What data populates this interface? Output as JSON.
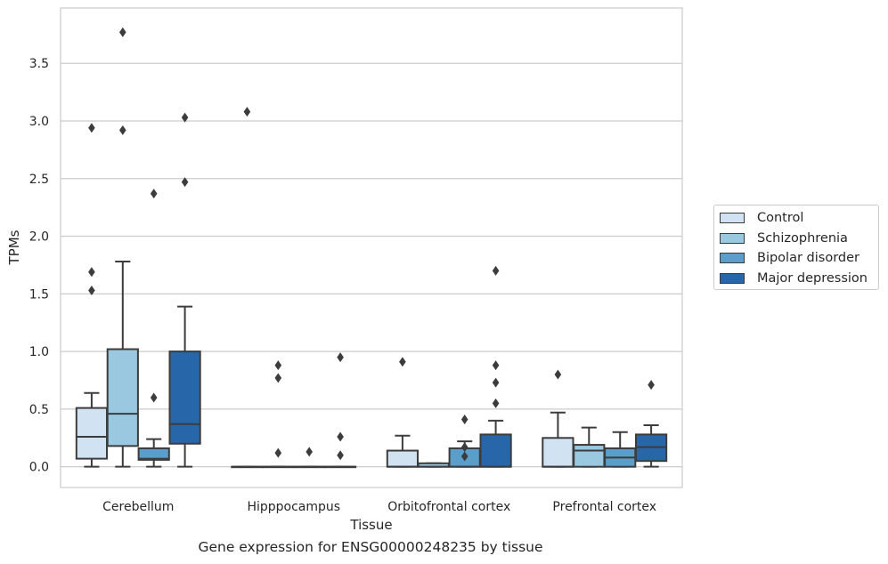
{
  "caption": "Gene expression for ENSG00000248235 by tissue",
  "chart_data": {
    "type": "box",
    "xlabel": "Tissue",
    "ylabel": "TPMs",
    "ylim": [
      -0.18,
      3.98
    ],
    "yticks": [
      "0.0",
      "0.5",
      "1.0",
      "1.5",
      "2.0",
      "2.5",
      "3.0",
      "3.5"
    ],
    "categories": [
      "Cerebellum",
      "Hipppocampus",
      "Orbitofrontal cortex",
      "Prefrontal cortex"
    ],
    "grid": "horizontal",
    "legend_position": "right",
    "series": [
      {
        "name": "Control",
        "color": "#d1e2f2",
        "boxes": [
          {
            "q1": 0.07,
            "median": 0.26,
            "q3": 0.51,
            "whisker_low": 0.0,
            "whisker_high": 0.64,
            "outliers": [
              1.53,
              1.69,
              2.94
            ]
          },
          {
            "q1": 0.0,
            "median": 0.0,
            "q3": 0.0,
            "whisker_low": 0.0,
            "whisker_high": 0.0,
            "outliers": [
              3.08
            ]
          },
          {
            "q1": 0.0,
            "median": 0.0,
            "q3": 0.14,
            "whisker_low": 0.0,
            "whisker_high": 0.27,
            "outliers": [
              0.91
            ]
          },
          {
            "q1": 0.0,
            "median": 0.0,
            "q3": 0.25,
            "whisker_low": 0.0,
            "whisker_high": 0.47,
            "outliers": [
              0.8
            ]
          }
        ]
      },
      {
        "name": "Schizophrenia",
        "color": "#9ac8e0",
        "boxes": [
          {
            "q1": 0.18,
            "median": 0.46,
            "q3": 1.02,
            "whisker_low": 0.0,
            "whisker_high": 1.78,
            "outliers": [
              2.92,
              3.77
            ]
          },
          {
            "q1": 0.0,
            "median": 0.0,
            "q3": 0.0,
            "whisker_low": 0.0,
            "whisker_high": 0.0,
            "outliers": [
              0.12,
              0.77,
              0.88
            ]
          },
          {
            "q1": 0.0,
            "median": 0.0,
            "q3": 0.03,
            "whisker_low": 0.0,
            "whisker_high": 0.03,
            "outliers": []
          },
          {
            "q1": 0.0,
            "median": 0.14,
            "q3": 0.19,
            "whisker_low": 0.0,
            "whisker_high": 0.34,
            "outliers": []
          }
        ]
      },
      {
        "name": "Bipolar disorder",
        "color": "#5a9ec9",
        "boxes": [
          {
            "q1": 0.06,
            "median": 0.07,
            "q3": 0.16,
            "whisker_low": 0.0,
            "whisker_high": 0.24,
            "outliers": [
              0.6,
              2.37
            ]
          },
          {
            "q1": 0.0,
            "median": 0.0,
            "q3": 0.0,
            "whisker_low": 0.0,
            "whisker_high": 0.0,
            "outliers": [
              0.13
            ]
          },
          {
            "q1": 0.0,
            "median": 0.0,
            "q3": 0.16,
            "whisker_low": 0.0,
            "whisker_high": 0.22,
            "outliers": [
              0.09,
              0.17,
              0.41
            ]
          },
          {
            "q1": 0.0,
            "median": 0.08,
            "q3": 0.16,
            "whisker_low": 0.0,
            "whisker_high": 0.3,
            "outliers": []
          }
        ]
      },
      {
        "name": "Major depression",
        "color": "#2766a8",
        "boxes": [
          {
            "q1": 0.2,
            "median": 0.37,
            "q3": 1.0,
            "whisker_low": 0.0,
            "whisker_high": 1.39,
            "outliers": [
              2.47,
              3.03
            ]
          },
          {
            "q1": 0.0,
            "median": 0.0,
            "q3": 0.0,
            "whisker_low": 0.0,
            "whisker_high": 0.0,
            "outliers": [
              0.1,
              0.26,
              0.95
            ]
          },
          {
            "q1": 0.0,
            "median": 0.0,
            "q3": 0.28,
            "whisker_low": 0.0,
            "whisker_high": 0.4,
            "outliers": [
              0.55,
              0.73,
              0.88,
              1.7
            ]
          },
          {
            "q1": 0.05,
            "median": 0.17,
            "q3": 0.28,
            "whisker_low": 0.0,
            "whisker_high": 0.36,
            "outliers": [
              0.71
            ]
          }
        ]
      }
    ]
  }
}
